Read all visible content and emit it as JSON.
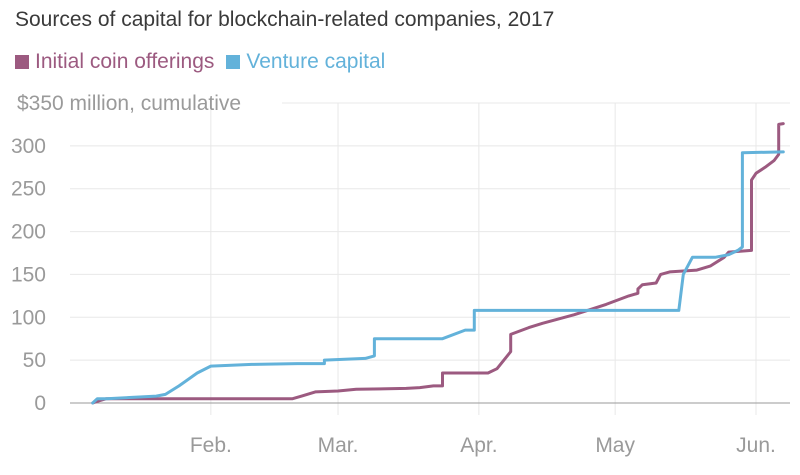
{
  "chart_data": {
    "type": "line",
    "title": "Sources of capital for blockchain-related companies, 2017",
    "top_tick_label": "$350 million, cumulative",
    "ylim": [
      0,
      350
    ],
    "y_ticks": [
      {
        "value": 0,
        "label": "0"
      },
      {
        "value": 50,
        "label": "50"
      },
      {
        "value": 100,
        "label": "100"
      },
      {
        "value": 150,
        "label": "150"
      },
      {
        "value": 200,
        "label": "200"
      },
      {
        "value": 250,
        "label": "250"
      },
      {
        "value": 300,
        "label": "300"
      }
    ],
    "xlim": [
      "2017-01-01",
      "2017-06-03"
    ],
    "x_ticks": [
      {
        "date": "2017-02-01",
        "label": "Feb."
      },
      {
        "date": "2017-03-01",
        "label": "Mar."
      },
      {
        "date": "2017-04-01",
        "label": "Apr."
      },
      {
        "date": "2017-05-01",
        "label": "May"
      },
      {
        "date": "2017-06-01",
        "label": "Jun."
      }
    ],
    "grid": true,
    "legend_position": "top-left",
    "series": [
      {
        "name": "Initial coin offerings",
        "color": "#9c5a80",
        "points": [
          [
            "2017-01-06",
            0
          ],
          [
            "2017-01-07",
            2
          ],
          [
            "2017-01-09",
            5
          ],
          [
            "2017-01-20",
            5
          ],
          [
            "2017-02-10",
            5
          ],
          [
            "2017-02-19",
            5
          ],
          [
            "2017-02-21",
            8
          ],
          [
            "2017-02-24",
            13
          ],
          [
            "2017-03-01",
            14
          ],
          [
            "2017-03-05",
            16
          ],
          [
            "2017-03-16",
            17
          ],
          [
            "2017-03-19",
            18
          ],
          [
            "2017-03-22",
            20
          ],
          [
            "2017-03-24",
            20
          ],
          [
            "2017-03-24",
            35
          ],
          [
            "2017-03-30",
            35
          ],
          [
            "2017-04-03",
            35
          ],
          [
            "2017-04-05",
            40
          ],
          [
            "2017-04-08",
            60
          ],
          [
            "2017-04-08",
            80
          ],
          [
            "2017-04-12",
            88
          ],
          [
            "2017-04-15",
            93
          ],
          [
            "2017-04-22",
            103
          ],
          [
            "2017-04-29",
            115
          ],
          [
            "2017-05-04",
            125
          ],
          [
            "2017-05-06",
            128
          ],
          [
            "2017-05-06",
            133
          ],
          [
            "2017-05-07",
            138
          ],
          [
            "2017-05-10",
            140
          ],
          [
            "2017-05-11",
            150
          ],
          [
            "2017-05-13",
            153
          ],
          [
            "2017-05-19",
            155
          ],
          [
            "2017-05-22",
            160
          ],
          [
            "2017-05-25",
            170
          ],
          [
            "2017-05-26",
            176
          ],
          [
            "2017-05-31",
            178
          ],
          [
            "2017-05-31",
            260
          ],
          [
            "2017-06-01",
            268
          ],
          [
            "2017-06-03",
            275
          ],
          [
            "2017-06-05",
            283
          ],
          [
            "2017-06-06",
            290
          ],
          [
            "2017-06-06",
            325
          ],
          [
            "2017-06-07",
            326
          ]
        ]
      },
      {
        "name": "Venture capital",
        "color": "#63b2da",
        "points": [
          [
            "2017-01-06",
            0
          ],
          [
            "2017-01-07",
            5
          ],
          [
            "2017-01-09",
            5
          ],
          [
            "2017-01-20",
            8
          ],
          [
            "2017-01-22",
            10
          ],
          [
            "2017-01-25",
            20
          ],
          [
            "2017-01-29",
            35
          ],
          [
            "2017-02-01",
            43
          ],
          [
            "2017-02-10",
            45
          ],
          [
            "2017-02-20",
            46
          ],
          [
            "2017-02-26",
            46
          ],
          [
            "2017-02-26",
            50
          ],
          [
            "2017-03-07",
            52
          ],
          [
            "2017-03-09",
            55
          ],
          [
            "2017-03-09",
            75
          ],
          [
            "2017-03-20",
            75
          ],
          [
            "2017-03-24",
            75
          ],
          [
            "2017-03-29",
            85
          ],
          [
            "2017-03-31",
            85
          ],
          [
            "2017-03-31",
            108
          ],
          [
            "2017-04-20",
            108
          ],
          [
            "2017-05-13",
            108
          ],
          [
            "2017-05-15",
            108
          ],
          [
            "2017-05-16",
            150
          ],
          [
            "2017-05-18",
            170
          ],
          [
            "2017-05-23",
            170
          ],
          [
            "2017-05-26",
            173
          ],
          [
            "2017-05-28",
            178
          ],
          [
            "2017-05-29",
            182
          ],
          [
            "2017-05-29",
            292
          ],
          [
            "2017-06-07",
            293
          ]
        ]
      }
    ]
  }
}
